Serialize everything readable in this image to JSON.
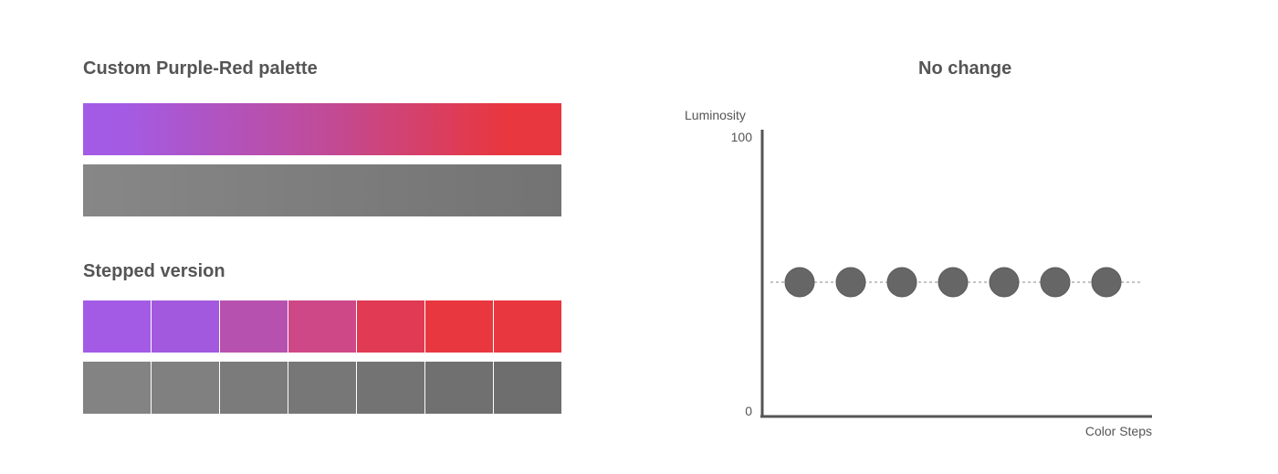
{
  "left": {
    "title": "Custom Purple-Red palette",
    "gradient": {
      "start_color": "#A35BE5",
      "end_color": "#E8373F",
      "gray_start": "#878787",
      "gray_end": "#737373"
    },
    "stepped_title": "Stepped version",
    "steps": [
      {
        "color": "#A35BE5",
        "gray": "#838383"
      },
      {
        "color": "#A359DE",
        "gray": "#808080"
      },
      {
        "color": "#B751AF",
        "gray": "#7B7B7B"
      },
      {
        "color": "#CE4787",
        "gray": "#777777"
      },
      {
        "color": "#E03A55",
        "gray": "#737373"
      },
      {
        "color": "#E8373F",
        "gray": "#707070"
      },
      {
        "color": "#E8373F",
        "gray": "#6E6E6E"
      }
    ]
  },
  "chart_data": {
    "type": "scatter",
    "title": "No change",
    "xlabel": "Color Steps",
    "ylabel": "Luminosity",
    "ylim": [
      0,
      100
    ],
    "yticks": [
      "100",
      "0"
    ],
    "x": [
      1,
      2,
      3,
      4,
      5,
      6,
      7
    ],
    "y": [
      47,
      47,
      47,
      47,
      47,
      47,
      47
    ],
    "reference_line": 47,
    "point_color": "#666666",
    "axis_color": "#555555"
  }
}
